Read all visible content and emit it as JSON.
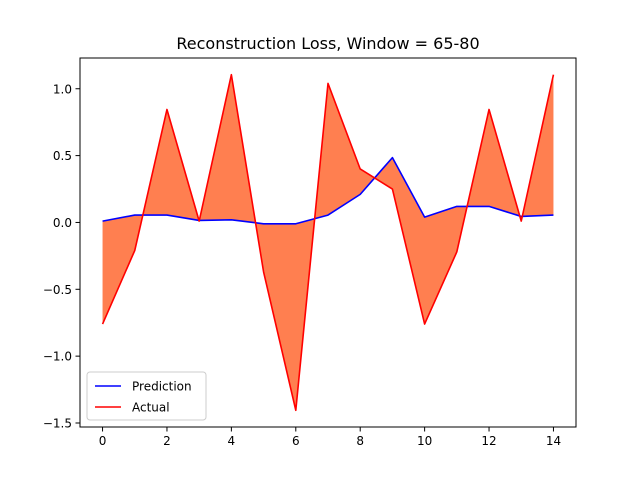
{
  "chart_data": {
    "type": "line",
    "title": "Reconstruction Loss, Window = 65-80",
    "xlabel": "",
    "ylabel": "",
    "x": [
      0,
      1,
      2,
      3,
      4,
      5,
      6,
      7,
      8,
      9,
      10,
      11,
      12,
      13,
      14
    ],
    "series": [
      {
        "name": "Prediction",
        "color": "#0000ff",
        "values": [
          0.01,
          0.055,
          0.055,
          0.015,
          0.02,
          -0.01,
          -0.01,
          0.055,
          0.21,
          0.485,
          0.04,
          0.12,
          0.12,
          0.045,
          0.055
        ]
      },
      {
        "name": "Actual",
        "color": "#ff0000",
        "values": [
          -0.76,
          -0.21,
          0.845,
          0.01,
          1.105,
          -0.37,
          -1.405,
          1.04,
          0.4,
          0.25,
          -0.76,
          -0.22,
          0.845,
          0.01,
          1.105
        ]
      }
    ],
    "fill_between": {
      "color": "#ff7f50",
      "between": [
        "Prediction",
        "Actual"
      ]
    },
    "xlim": [
      -0.7,
      14.7
    ],
    "ylim": [
      -1.53,
      1.23
    ],
    "xticks": [
      0,
      2,
      4,
      6,
      8,
      10,
      12,
      14
    ],
    "xtick_labels": [
      "0",
      "2",
      "4",
      "6",
      "8",
      "10",
      "12",
      "14"
    ],
    "yticks": [
      -1.5,
      -1.0,
      -0.5,
      0.0,
      0.5,
      1.0
    ],
    "ytick_labels": [
      "−1.5",
      "−1.0",
      "−0.5",
      "0.0",
      "0.5",
      "1.0"
    ],
    "grid": false,
    "legend": {
      "position": "lower-left"
    }
  }
}
